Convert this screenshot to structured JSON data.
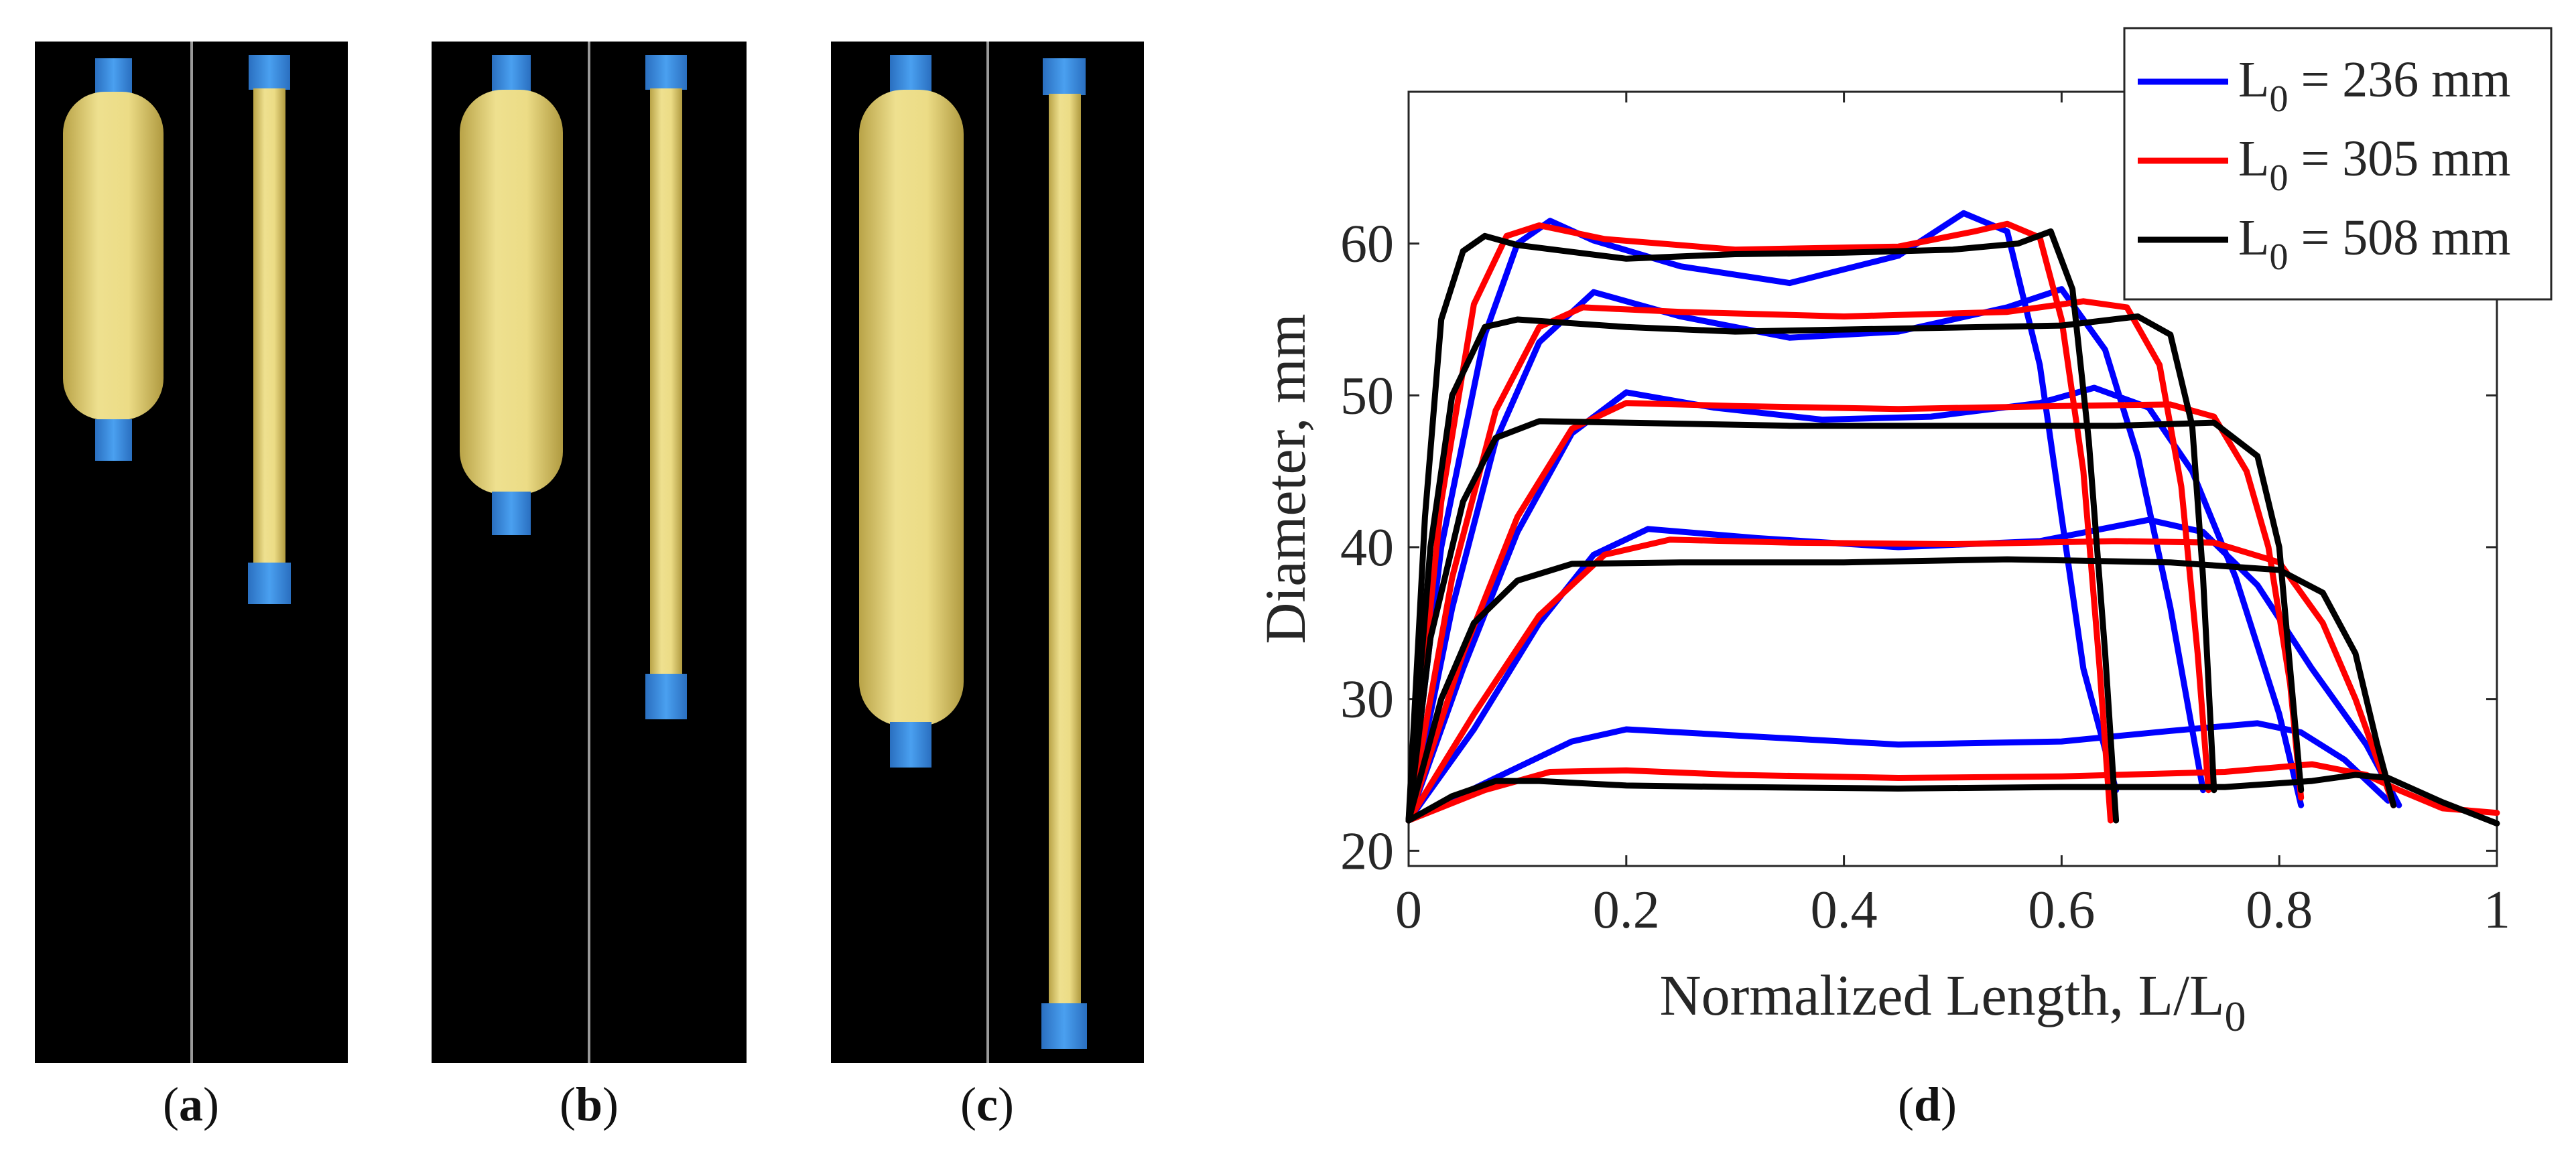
{
  "panels": [
    {
      "id": "a",
      "caption": "a"
    },
    {
      "id": "b",
      "caption": "b"
    },
    {
      "id": "c",
      "caption": "c"
    },
    {
      "id": "d",
      "caption": "d"
    }
  ],
  "colors": {
    "tube": "#e8d985",
    "tube_shade": "#c9b654",
    "cap": "#3d8fe0",
    "background": "#000000",
    "series_236": "#0000ff",
    "series_305": "#ff0000",
    "series_508": "#000000"
  },
  "chart_data": {
    "type": "line",
    "xlabel": "Normalized Length, L/L",
    "xlabel_sub": "0",
    "ylabel": "Diameter, mm",
    "xlim": [
      0,
      1
    ],
    "ylim": [
      19,
      70
    ],
    "xticks": [
      0,
      0.2,
      0.4,
      0.6,
      0.8,
      1
    ],
    "xtick_labels": [
      "0",
      "0.2",
      "0.4",
      "0.6",
      "0.8",
      "1"
    ],
    "yticks": [
      20,
      30,
      40,
      50,
      60
    ],
    "ytick_labels": [
      "20",
      "30",
      "40",
      "50",
      "60"
    ],
    "legend_position": "top-right",
    "series": [
      {
        "name": "L",
        "sub": "0",
        "value_text": " = 236 mm",
        "color": "#0000ff",
        "curves": [
          {
            "x": [
              0,
              0.03,
              0.07,
              0.1,
              0.13,
              0.17,
              0.25,
              0.35,
              0.45,
              0.51,
              0.55,
              0.58,
              0.6,
              0.62,
              0.65
            ],
            "y": [
              22,
              40,
              54,
              60,
              61.5,
              60.2,
              58.5,
              57.4,
              59.2,
              62,
              60.8,
              52,
              42,
              32,
              24
            ]
          },
          {
            "x": [
              0,
              0.04,
              0.08,
              0.12,
              0.17,
              0.25,
              0.35,
              0.45,
              0.55,
              0.6,
              0.64,
              0.67,
              0.7,
              0.73
            ],
            "y": [
              22,
              36,
              47,
              53.5,
              56.8,
              55.2,
              53.8,
              54.2,
              55.8,
              57,
              53,
              46,
              36,
              24
            ]
          },
          {
            "x": [
              0,
              0.05,
              0.1,
              0.15,
              0.2,
              0.28,
              0.38,
              0.48,
              0.58,
              0.63,
              0.68,
              0.72,
              0.76,
              0.8,
              0.82
            ],
            "y": [
              22,
              32,
              41,
              47.5,
              50.2,
              49.2,
              48.4,
              48.6,
              49.5,
              50.5,
              49.2,
              45,
              38,
              29,
              23
            ]
          },
          {
            "x": [
              0,
              0.06,
              0.12,
              0.17,
              0.22,
              0.32,
              0.45,
              0.58,
              0.68,
              0.73,
              0.78,
              0.83,
              0.88,
              0.91
            ],
            "y": [
              22,
              28,
              35,
              39.5,
              41.2,
              40.6,
              40,
              40.4,
              41.8,
              41,
              37.5,
              32,
              27,
              23
            ]
          },
          {
            "x": [
              0,
              0.08,
              0.15,
              0.2,
              0.3,
              0.45,
              0.6,
              0.7,
              0.78,
              0.82,
              0.86,
              0.9
            ],
            "y": [
              22,
              24.8,
              27.2,
              28,
              27.6,
              27,
              27.2,
              27.9,
              28.4,
              27.8,
              26,
              23.3
            ]
          }
        ]
      },
      {
        "name": "L",
        "sub": "0",
        "value_text": " = 305 mm",
        "color": "#ff0000",
        "curves": [
          {
            "x": [
              0,
              0.03,
              0.06,
              0.09,
              0.12,
              0.18,
              0.3,
              0.45,
              0.52,
              0.55,
              0.58,
              0.6,
              0.62,
              0.635,
              0.645
            ],
            "y": [
              22,
              43,
              56,
              60.5,
              61.2,
              60.3,
              59.6,
              59.8,
              60.8,
              61.3,
              60.4,
              55,
              45,
              32,
              22
            ]
          },
          {
            "x": [
              0,
              0.04,
              0.08,
              0.12,
              0.16,
              0.25,
              0.4,
              0.55,
              0.62,
              0.66,
              0.69,
              0.71,
              0.725,
              0.735
            ],
            "y": [
              22,
              38,
              49,
              54.5,
              55.8,
              55.5,
              55.2,
              55.5,
              56.2,
              55.8,
              52,
              44,
              33,
              24
            ]
          },
          {
            "x": [
              0,
              0.05,
              0.1,
              0.15,
              0.2,
              0.3,
              0.45,
              0.6,
              0.7,
              0.74,
              0.77,
              0.79,
              0.81,
              0.82
            ],
            "y": [
              22,
              33,
              42,
              47.8,
              49.5,
              49.3,
              49.1,
              49.3,
              49.4,
              48.6,
              45,
              40,
              31,
              23.5
            ]
          },
          {
            "x": [
              0,
              0.06,
              0.12,
              0.18,
              0.24,
              0.35,
              0.5,
              0.65,
              0.74,
              0.8,
              0.84,
              0.87,
              0.89,
              0.905
            ],
            "y": [
              22,
              29,
              35.5,
              39.5,
              40.5,
              40.3,
              40.2,
              40.4,
              40.3,
              39,
              35,
              30,
              26,
              23
            ]
          },
          {
            "x": [
              0,
              0.07,
              0.13,
              0.2,
              0.3,
              0.45,
              0.6,
              0.75,
              0.83,
              0.88,
              0.91,
              0.95,
              1
            ],
            "y": [
              22,
              24,
              25.2,
              25.3,
              25,
              24.8,
              24.9,
              25.2,
              25.7,
              25,
              24,
              22.8,
              22.5
            ]
          }
        ]
      },
      {
        "name": "L",
        "sub": "0",
        "value_text": " = 508 mm",
        "color": "#000000",
        "curves": [
          {
            "x": [
              0,
              0.015,
              0.03,
              0.05,
              0.07,
              0.1,
              0.2,
              0.3,
              0.4,
              0.5,
              0.56,
              0.59,
              0.61,
              0.625,
              0.64,
              0.65
            ],
            "y": [
              22,
              42,
              55,
              59.5,
              60.5,
              59.9,
              59,
              59.3,
              59.4,
              59.6,
              60,
              60.8,
              57,
              47,
              33,
              22
            ]
          },
          {
            "x": [
              0,
              0.02,
              0.04,
              0.07,
              0.1,
              0.2,
              0.3,
              0.45,
              0.6,
              0.67,
              0.7,
              0.72,
              0.73,
              0.74
            ],
            "y": [
              22,
              40,
              50,
              54.5,
              55,
              54.5,
              54.2,
              54.4,
              54.6,
              55.2,
              54,
              48,
              38,
              24
            ]
          },
          {
            "x": [
              0,
              0.02,
              0.05,
              0.08,
              0.12,
              0.2,
              0.35,
              0.5,
              0.65,
              0.74,
              0.78,
              0.8,
              0.81,
              0.82
            ],
            "y": [
              22,
              34,
              43,
              47.2,
              48.3,
              48.2,
              48,
              48,
              48,
              48.2,
              46,
              40,
              32,
              24
            ]
          },
          {
            "x": [
              0,
              0.03,
              0.06,
              0.1,
              0.15,
              0.25,
              0.4,
              0.55,
              0.7,
              0.8,
              0.84,
              0.87,
              0.89,
              0.905
            ],
            "y": [
              22,
              30,
              35,
              37.8,
              38.9,
              39,
              39,
              39.2,
              39,
              38.5,
              37,
              33,
              27,
              23
            ]
          },
          {
            "x": [
              0,
              0.04,
              0.08,
              0.12,
              0.2,
              0.3,
              0.45,
              0.6,
              0.75,
              0.83,
              0.87,
              0.9,
              0.95,
              1
            ],
            "y": [
              22,
              23.6,
              24.6,
              24.6,
              24.3,
              24.2,
              24.1,
              24.2,
              24.2,
              24.6,
              25,
              24.8,
              23.2,
              21.8
            ]
          }
        ]
      }
    ]
  }
}
